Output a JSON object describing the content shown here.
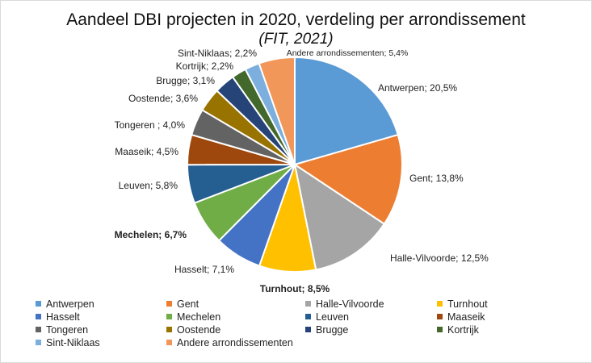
{
  "chart_data": {
    "type": "pie",
    "title": "Aandeel DBI projecten in 2020, verdeling per arrondissement",
    "subtitle": "(FIT, 2021)",
    "legend_position": "bottom",
    "slices": [
      {
        "name": "Antwerpen",
        "value": 20.5,
        "label": "Antwerpen; 20,5%",
        "color": "#5b9bd5",
        "bold": false
      },
      {
        "name": "Gent",
        "value": 13.8,
        "label": "Gent; 13,8%",
        "color": "#ed7d31",
        "bold": false
      },
      {
        "name": "Halle-Vilvoorde",
        "value": 12.5,
        "label": "Halle-Vilvoorde; 12,5%",
        "color": "#a5a5a5",
        "bold": false
      },
      {
        "name": "Turnhout",
        "value": 8.5,
        "label": "Turnhout; 8,5%",
        "color": "#ffc000",
        "bold": true
      },
      {
        "name": "Hasselt",
        "value": 7.1,
        "label": "Hasselt; 7,1%",
        "color": "#4472c4",
        "bold": false
      },
      {
        "name": "Mechelen",
        "value": 6.7,
        "label": "Mechelen; 6,7%",
        "color": "#70ad47",
        "bold": true
      },
      {
        "name": "Leuven",
        "value": 5.8,
        "label": "Leuven; 5,8%",
        "color": "#255e91",
        "bold": false
      },
      {
        "name": "Maaseik",
        "value": 4.5,
        "label": "Maaseik; 4,5%",
        "color": "#9e480e",
        "bold": false
      },
      {
        "name": "Tongeren",
        "value": 4.0,
        "label": "Tongeren ; 4,0%",
        "color": "#636363",
        "bold": false
      },
      {
        "name": "Oostende",
        "value": 3.6,
        "label": "Oostende; 3,6%",
        "color": "#997300",
        "bold": false
      },
      {
        "name": "Brugge",
        "value": 3.1,
        "label": "Brugge; 3,1%",
        "color": "#264478",
        "bold": false
      },
      {
        "name": "Kortrijk",
        "value": 2.2,
        "label": "Kortrijk; 2,2%",
        "color": "#43682b",
        "bold": false
      },
      {
        "name": "Sint-Niklaas",
        "value": 2.2,
        "label": "Sint-Niklaas; 2,2%",
        "color": "#7cafdd",
        "bold": false
      },
      {
        "name": "Andere arrondissementen",
        "value": 5.4,
        "label": "Andere arrondissementen; 5,4%",
        "color": "#f1975a",
        "bold": false
      }
    ]
  }
}
